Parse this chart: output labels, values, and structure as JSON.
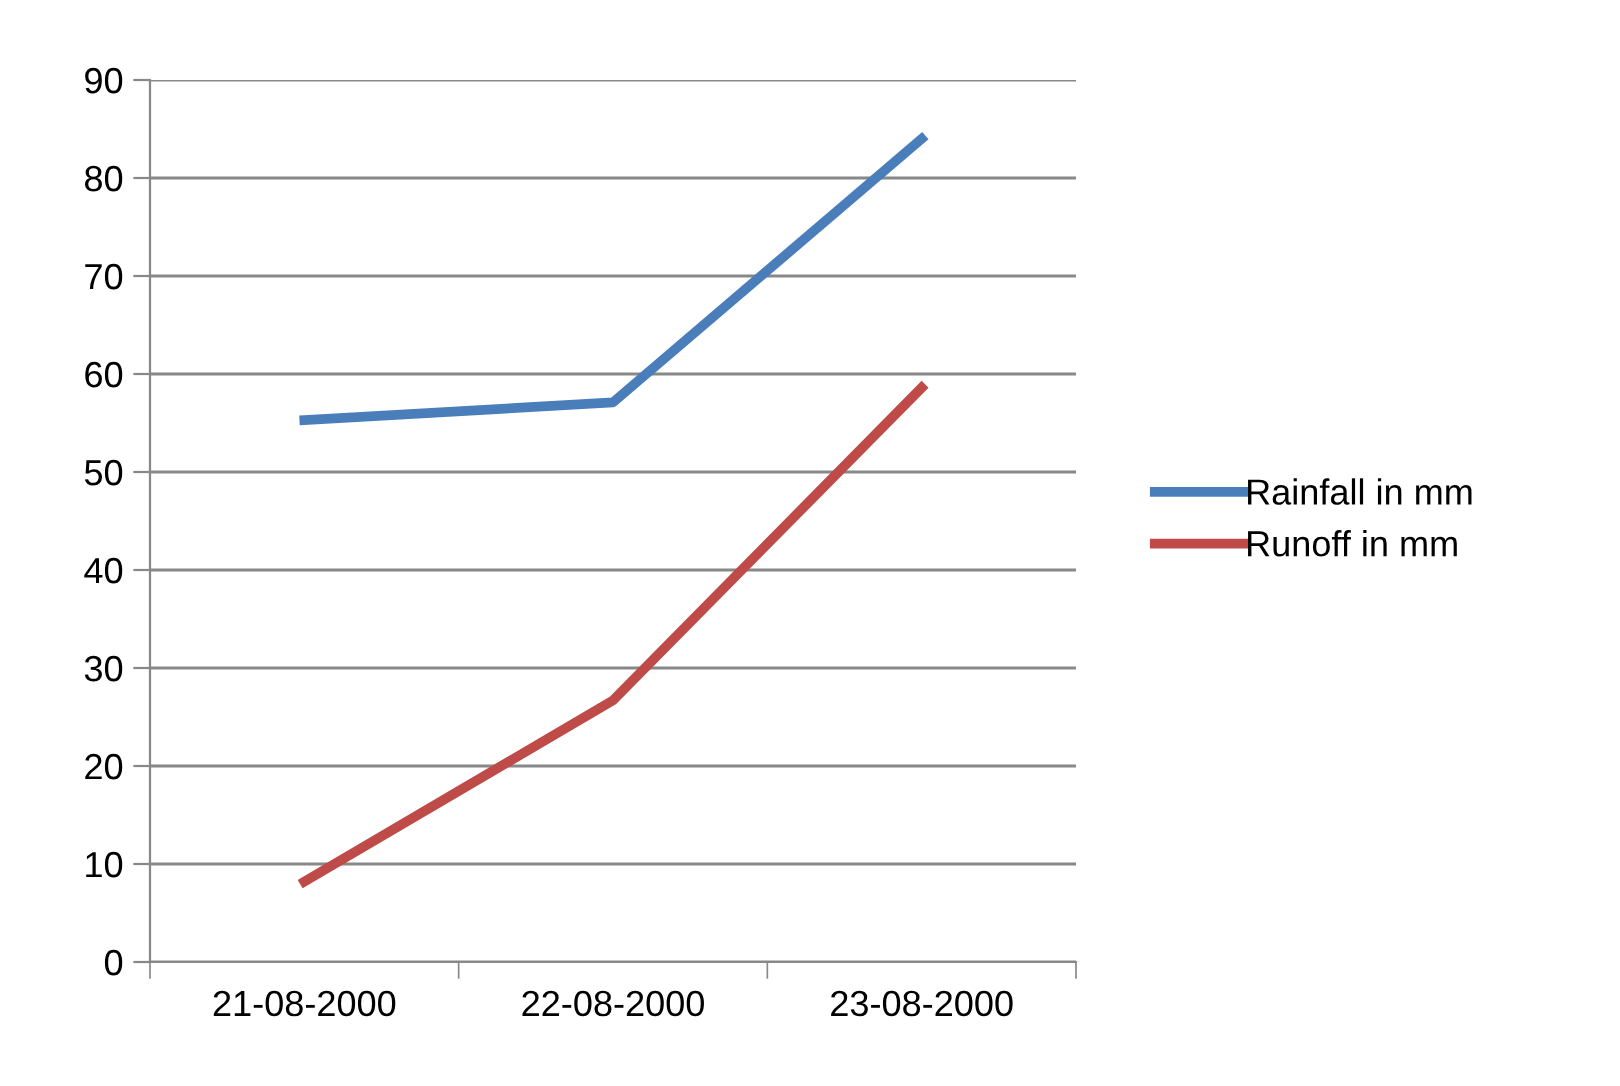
{
  "chart_data": {
    "type": "line",
    "categories": [
      "21-08-2000",
      "22-08-2000",
      "23-08-2000"
    ],
    "series": [
      {
        "name": "Rainfall in mm",
        "color": "#4a7ebb",
        "values": [
          55.3,
          57.1,
          84
        ]
      },
      {
        "name": "Runoff in mm",
        "color": "#be4b48",
        "values": [
          8.2,
          26.7,
          58.6
        ]
      }
    ],
    "ylim": [
      0,
      90
    ],
    "yticks": [
      0,
      10,
      20,
      30,
      40,
      50,
      60,
      70,
      80,
      90
    ],
    "grid": "y",
    "legend": "right",
    "marker": "none",
    "line_style": "solid"
  }
}
